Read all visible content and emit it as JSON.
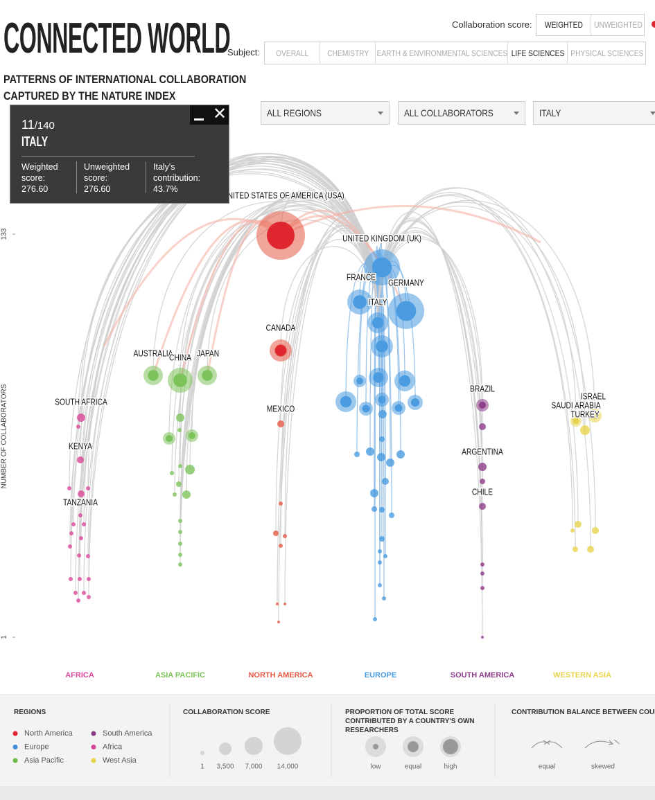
{
  "header": {
    "title": "CONNECTED WORLD",
    "subtitle": [
      "PATTERNS OF INTERNATIONAL COLLABORATION",
      "CAPTURED BY THE NATURE INDEX"
    ]
  },
  "controls": {
    "score_label": "Collaboration score:",
    "score_options": [
      "WEIGHTED",
      "UNWEIGHTED"
    ],
    "subject_label": "Subject:",
    "subjects": [
      "OVERALL",
      "CHEMISTRY",
      "EARTH & ENVIRONMENTAL SCIENCES",
      "LIFE SCIENCES",
      "PHYSICAL SCIENCES"
    ],
    "dropdowns": [
      "ALL REGIONS",
      "ALL COLLABORATORS",
      "ITALY"
    ]
  },
  "tooltip": {
    "rank": "11",
    "total": "/140",
    "country": "ITALY",
    "stats": [
      {
        "label": "Weighted score:",
        "value": "276.60"
      },
      {
        "label": "Unweighted score:",
        "value": "276.60"
      },
      {
        "label": "Italy's contribution:",
        "value": "43.7%"
      }
    ]
  },
  "visual": {
    "axis_label": "NUMBER OF COLLABORATORS",
    "ticks": [
      133,
      1
    ],
    "regions": [
      {
        "name": "AFRICA",
        "color": "#d9489a"
      },
      {
        "name": "ASIA PACIFIC",
        "color": "#7dc35b"
      },
      {
        "name": "NORTH AMERICA",
        "color": "#e55a45"
      },
      {
        "name": "EUROPE",
        "color": "#4a9be0"
      },
      {
        "name": "SOUTH AMERICA",
        "color": "#8c3d8a"
      },
      {
        "name": "WESTERN ASIA",
        "color": "#e8d44c"
      }
    ],
    "countries": [
      "UNITED STATES OF AMERICA (USA)",
      "UNITED KINGDOM (UK)",
      "FRANCE",
      "GERMANY",
      "ITALY",
      "CANADA",
      "AUSTRALIA",
      "CHINA",
      "JAPAN",
      "MEXICO",
      "SOUTH AFRICA",
      "KENYA",
      "TANZANIA",
      "BRAZIL",
      "ARGENTINA",
      "CHILE",
      "ISRAEL",
      "SAUDI ARABIA",
      "TURKEY"
    ]
  },
  "legend": {
    "regions_title": "REGIONS",
    "regions": [
      {
        "name": "North America",
        "color": "#e0262f"
      },
      {
        "name": "South America",
        "color": "#8c3d8a"
      },
      {
        "name": "Europe",
        "color": "#3f8fd8"
      },
      {
        "name": "Africa",
        "color": "#d9489a"
      },
      {
        "name": "Asia Pacific",
        "color": "#6cba4a"
      },
      {
        "name": "West Asia",
        "color": "#e8d44c"
      }
    ],
    "score_title": "COLLABORATION SCORE",
    "score_sizes": [
      1,
      {
        "value": 3500,
        "label": "3,500"
      },
      {
        "value": 7000,
        "label": "7,000"
      },
      {
        "value": 14000,
        "label": "14,000"
      }
    ],
    "proportion_title": "PROPORTION OF TOTAL SCORE CONTRIBUTED BY A COUNTRY'S OWN RESEARCHERS",
    "proportion": [
      "low",
      "equal",
      "high"
    ],
    "balance_title": "CONTRIBUTION BALANCE BETWEEN COUNTRIES",
    "balance": [
      "equal",
      "skewed"
    ]
  }
}
